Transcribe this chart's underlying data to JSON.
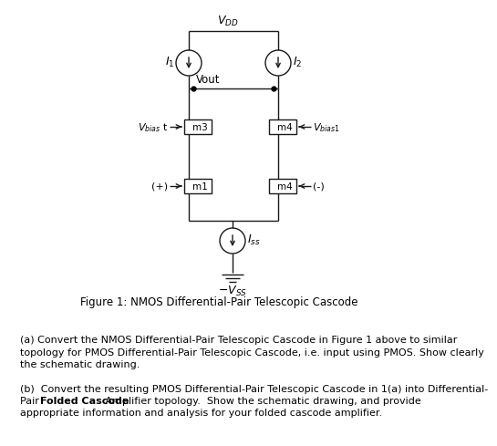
{
  "title": "Figure 1: NMOS Differential-Pair Telescopic Cascode",
  "vdd_label": "$V_{DD}$",
  "vss_label": "$- V_{SS}$",
  "vout_label": "Vout",
  "iss_label": "$I_{ss}$",
  "i1_label": "$I_1$",
  "i2_label": "$I_2$",
  "m1_label": "m1",
  "m3_label": "m3",
  "m4_left_label": "m4",
  "m4_right_label": "m4",
  "vbias_t_label": "$V_{bias}$ t",
  "vbias_1_label": "$V_{bias 1}$",
  "plus_label": "(+)",
  "minus_label": "(-)",
  "text_a": "(a) Convert the NMOS Differential-Pair Telescopic Cascode in Figure 1 above to similar\ntopology for PMOS Differential-Pair Telescopic Cascode, i.e. input using PMOS. Show clearly\nthe schematic drawing.",
  "text_b_pre": "(b)  Convert the resulting PMOS Differential-Pair Telescopic Cascode in 1(a) into Differential-\nPair ",
  "text_b_bold": "Folded Cascode",
  "text_b_post": " Amplifier topology.  Show the schematic drawing, and provide\nappropriate information and analysis for your folded cascode amplifier.",
  "bg_color": "#ffffff",
  "line_color": "#1a1a1a",
  "text_color": "#000000"
}
